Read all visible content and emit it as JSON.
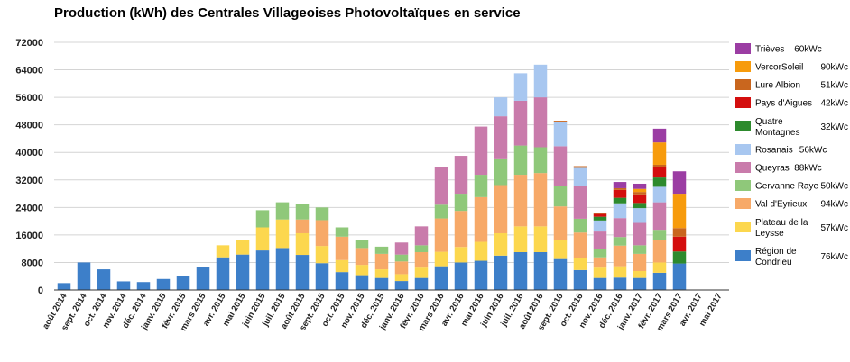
{
  "chart_data": {
    "type": "bar",
    "stacked": true,
    "title": "Production (kWh) des Centrales Villageoises Photovoltaïques en service",
    "xlabel": "",
    "ylabel": "",
    "ylim": [
      0,
      72000
    ],
    "yticks": [
      0,
      8000,
      16000,
      24000,
      32000,
      40000,
      48000,
      56000,
      64000,
      72000
    ],
    "ytick_labels": [
      "0",
      "8000",
      "16000",
      "24000",
      "32000",
      "40000",
      "48000",
      "56000",
      "64000",
      "72000"
    ],
    "grid": true,
    "legend_position": "right",
    "categories": [
      "août 2014",
      "sept. 2014",
      "oct. 2014",
      "nov. 2014",
      "déc. 2014",
      "janv. 2015",
      "févr. 2015",
      "mars 2015",
      "avr. 2015",
      "mai 2015",
      "juin 2015",
      "juil. 2015",
      "août 2015",
      "sept. 2015",
      "oct. 2015",
      "nov. 2015",
      "déc. 2015",
      "janv. 2016",
      "févr. 2016",
      "mars 2016",
      "avr. 2016",
      "mai 2016",
      "juin 2016",
      "juil. 2016",
      "août 2016",
      "sept. 2016",
      "oct. 2016",
      "nov. 2016",
      "déc. 2016",
      "janv. 2017",
      "févr. 2017",
      "mars 2017",
      "avr. 2017",
      "mai 2017"
    ],
    "series": [
      {
        "name": "Région de Condrieu",
        "capacity": "76kWc",
        "color": "#3d7fc9",
        "values": [
          2000,
          8000,
          6000,
          2500,
          2300,
          3200,
          4000,
          6700,
          9500,
          10300,
          11500,
          12200,
          10200,
          7800,
          5200,
          4300,
          3500,
          2600,
          3500,
          6900,
          8000,
          8500,
          10000,
          11000,
          11000,
          9000,
          5800,
          3500,
          3600,
          3500,
          5000,
          7700,
          0,
          0
        ]
      },
      {
        "name": "Plateau de la Leysse",
        "capacity": "57kWc",
        "color": "#fcd74e",
        "values": [
          0,
          0,
          0,
          0,
          0,
          0,
          0,
          0,
          3500,
          4300,
          6700,
          8300,
          6300,
          5000,
          3500,
          3000,
          2500,
          2000,
          3000,
          4200,
          4500,
          5500,
          6500,
          7500,
          7500,
          5500,
          3500,
          3000,
          3300,
          2000,
          3000,
          0,
          0,
          0
        ]
      },
      {
        "name": "Val d'Eyrieux",
        "capacity": "94kWc",
        "color": "#f7a968",
        "values": [
          0,
          0,
          0,
          0,
          0,
          0,
          0,
          0,
          0,
          0,
          0,
          0,
          4000,
          7500,
          6800,
          4900,
          4500,
          3700,
          4500,
          9700,
          10500,
          13000,
          14000,
          15000,
          15500,
          9800,
          7400,
          3000,
          6000,
          5000,
          6500,
          0,
          0,
          0
        ]
      },
      {
        "name": "Gervanne Raye",
        "capacity": "50kWc",
        "color": "#8fc87a",
        "values": [
          0,
          0,
          0,
          0,
          0,
          0,
          0,
          0,
          0,
          0,
          5000,
          5000,
          4500,
          3700,
          2700,
          2200,
          2100,
          2000,
          2000,
          4000,
          5000,
          6500,
          7500,
          8500,
          7500,
          6000,
          4000,
          2500,
          2500,
          2500,
          3000,
          0,
          0,
          0
        ]
      },
      {
        "name": "Queyras",
        "capacity": "88kWc",
        "color": "#c97bab",
        "values": [
          0,
          0,
          0,
          0,
          0,
          0,
          0,
          0,
          0,
          0,
          0,
          0,
          0,
          0,
          0,
          0,
          0,
          3500,
          5500,
          11000,
          11000,
          14000,
          12500,
          13000,
          14500,
          11500,
          9500,
          5000,
          5500,
          6500,
          8000,
          0,
          0,
          0
        ]
      },
      {
        "name": "Rosanais",
        "capacity": "56kWc",
        "color": "#a8c7f0",
        "values": [
          0,
          0,
          0,
          0,
          0,
          0,
          0,
          0,
          0,
          0,
          0,
          0,
          0,
          0,
          0,
          0,
          0,
          0,
          0,
          0,
          0,
          0,
          5500,
          8000,
          9500,
          7000,
          5300,
          3200,
          4300,
          4300,
          4500,
          0,
          0,
          0
        ]
      },
      {
        "name": "Quatre Montagnes",
        "capacity": "32kWc",
        "color": "#2d8a2d",
        "values": [
          0,
          0,
          0,
          0,
          0,
          0,
          0,
          0,
          0,
          0,
          0,
          0,
          0,
          0,
          0,
          0,
          0,
          0,
          0,
          0,
          0,
          0,
          0,
          0,
          0,
          0,
          0,
          1100,
          1600,
          1500,
          2700,
          3500,
          0,
          0
        ]
      },
      {
        "name": "Pays d'Aigues",
        "capacity": "42kWc",
        "color": "#d40e0e",
        "values": [
          0,
          0,
          0,
          0,
          0,
          0,
          0,
          0,
          0,
          0,
          0,
          0,
          0,
          0,
          0,
          0,
          0,
          0,
          0,
          0,
          0,
          0,
          0,
          0,
          0,
          0,
          0,
          800,
          2300,
          2500,
          3000,
          4300,
          0,
          0
        ]
      },
      {
        "name": "Lure Albion",
        "capacity": "51kWc",
        "color": "#c9661e",
        "values": [
          0,
          0,
          0,
          0,
          0,
          0,
          0,
          0,
          0,
          0,
          0,
          0,
          0,
          0,
          0,
          0,
          0,
          0,
          0,
          0,
          0,
          0,
          0,
          0,
          0,
          400,
          500,
          400,
          500,
          700,
          700,
          2500,
          0,
          0
        ]
      },
      {
        "name": "VercorSoleil",
        "capacity": "90kWc",
        "color": "#f79b0c",
        "values": [
          0,
          0,
          0,
          0,
          0,
          0,
          0,
          0,
          0,
          0,
          0,
          0,
          0,
          0,
          0,
          0,
          0,
          0,
          0,
          0,
          0,
          0,
          0,
          0,
          0,
          0,
          0,
          0,
          0,
          900,
          6500,
          10000,
          0,
          0
        ]
      },
      {
        "name": "Trièves",
        "capacity": "60kWc",
        "color": "#9b3da3",
        "values": [
          0,
          0,
          0,
          0,
          0,
          0,
          0,
          0,
          0,
          0,
          0,
          0,
          0,
          0,
          0,
          0,
          0,
          0,
          0,
          0,
          0,
          0,
          0,
          0,
          0,
          0,
          0,
          0,
          1800,
          1500,
          4000,
          6500,
          0,
          0
        ]
      }
    ],
    "legend_order": [
      "Trièves",
      "VercorSoleil",
      "Lure Albion",
      "Pays d'Aigues",
      "Quatre Montagnes",
      "Rosanais",
      "Queyras",
      "Gervanne Raye",
      "Val d'Eyrieux",
      "Plateau de la Leysse",
      "Région de Condrieu"
    ]
  }
}
